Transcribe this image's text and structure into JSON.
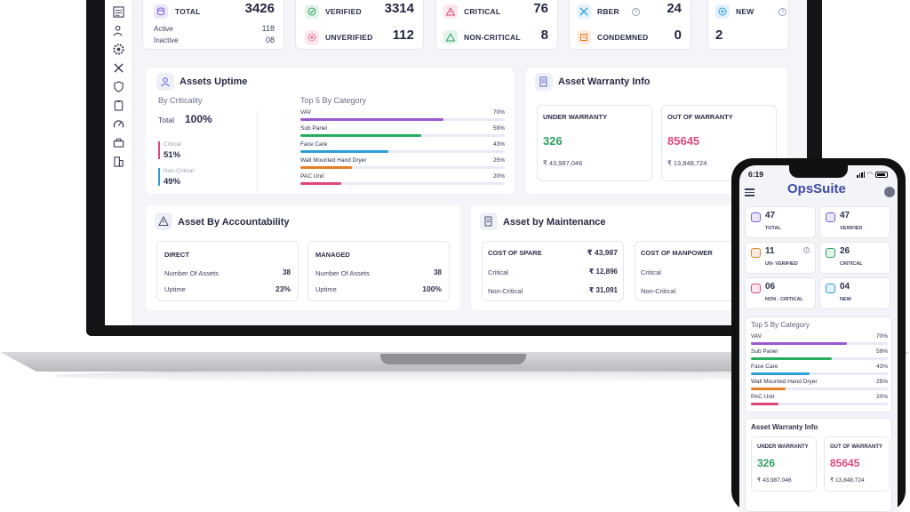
{
  "laptop": {
    "sidebar": {
      "icons": [
        "stacked-report-icon",
        "user-tools-icon",
        "gear-circle-icon",
        "wrench-cross-icon",
        "shield-icon",
        "clipboard-icon",
        "dashboard-gauge-icon",
        "toolbox-icon",
        "building-icon"
      ]
    },
    "stats": {
      "total": {
        "label": "TOTAL",
        "value": "3426",
        "active_label": "Active",
        "active_value": "118",
        "inactive_label": "Inactive",
        "inactive_value": "08"
      },
      "verified": {
        "label": "VERIFIED",
        "value": "3314"
      },
      "unverified": {
        "label": "UNVERIFIED",
        "value": "112"
      },
      "critical": {
        "label": "CRITICAL",
        "value": "76"
      },
      "non_critical": {
        "label": "NON-CRITICAL",
        "value": "8"
      },
      "rber": {
        "label": "RBER",
        "value": "24"
      },
      "condemned": {
        "label": "CONDEMNED",
        "value": "0"
      },
      "new": {
        "label": "NEW",
        "value": "2"
      }
    },
    "uptime": {
      "title": "Assets Uptime",
      "by_criticality": "By Criticality",
      "total_label": "Total",
      "total_value": "100%",
      "critical_label": "Critical",
      "critical_value": "51%",
      "noncritical_label": "Non-Critical",
      "noncritical_value": "49%",
      "top5_title": "Top 5 By Category",
      "categories": [
        {
          "name": "VAV",
          "pct": "70%",
          "fraction": 0.7,
          "color": "#9b59d0"
        },
        {
          "name": "Sub Panel",
          "pct": "59%",
          "fraction": 0.59,
          "color": "#27ae60"
        },
        {
          "name": "Face Care",
          "pct": "43%",
          "fraction": 0.43,
          "color": "#2e9fd6"
        },
        {
          "name": "Wall Mounted Hand Dryer",
          "pct": "25%",
          "fraction": 0.25,
          "color": "#e67e22"
        },
        {
          "name": "PAC Unit",
          "pct": "20%",
          "fraction": 0.2,
          "color": "#e0457b"
        }
      ]
    },
    "warranty": {
      "title": "Asset Warranty Info",
      "under_label": "UNDER WARRANTY",
      "under_value": "326",
      "under_amount": "₹ 43,987,046",
      "out_label": "OUT OF WARRANTY",
      "out_value": "85645",
      "out_amount": "₹ 13,848,724"
    },
    "accountability": {
      "title": "Asset By Accountability",
      "direct": {
        "label": "DIRECT",
        "assets_label": "Number Of Assets",
        "assets_value": "38",
        "uptime_label": "Uptime",
        "uptime_value": "23%"
      },
      "managed": {
        "label": "MANAGED",
        "assets_label": "Number Of Assets",
        "assets_value": "38",
        "uptime_label": "Uptime",
        "uptime_value": "100%"
      }
    },
    "maintenance": {
      "title": "Asset by Maintenance",
      "spare": {
        "label": "COST OF SPARE",
        "total": "₹ 43,987",
        "critical_label": "Critical",
        "critical_value": "₹ 12,896",
        "noncritical_label": "Non-Critical",
        "noncritical_value": "₹ 31,091"
      },
      "manpower": {
        "label": "COST OF MANPOWER",
        "critical_label": "Critical",
        "noncritical_label": "Non-Critical"
      }
    }
  },
  "phone": {
    "time": "6:19",
    "brand": "OpsSuite",
    "tiles": [
      {
        "value": "47",
        "label": "TOTAL"
      },
      {
        "value": "47",
        "label": "VERIFIED"
      },
      {
        "value": "11",
        "label": "UN- VERIFIED"
      },
      {
        "value": "26",
        "label": "CRITICAL"
      },
      {
        "value": "06",
        "label": "NON - CRITICAL"
      },
      {
        "value": "04",
        "label": "NEW"
      }
    ],
    "top5_title": "Top 5 By Category",
    "categories": [
      {
        "name": "VAV",
        "pct": "70%",
        "fraction": 0.7,
        "color": "#9b59d0"
      },
      {
        "name": "Sub Panel",
        "pct": "59%",
        "fraction": 0.59,
        "color": "#27ae60"
      },
      {
        "name": "Face Care",
        "pct": "43%",
        "fraction": 0.43,
        "color": "#2e9fd6"
      },
      {
        "name": "Wall Mounted Hand Dryer",
        "pct": "25%",
        "fraction": 0.25,
        "color": "#e67e22"
      },
      {
        "name": "PAC Unit",
        "pct": "20%",
        "fraction": 0.2,
        "color": "#e0457b"
      }
    ],
    "warranty": {
      "title": "Asset Warranty Info",
      "under_label": "UNDER WARRANTY",
      "under_value": "326",
      "under_amount": "₹ 43,987,046",
      "out_label": "OUT OF WARRANTY",
      "out_value": "85645",
      "out_amount": "₹ 13,848,724"
    }
  },
  "colors": {
    "green": "#2f9e63",
    "pink": "#d94a7a",
    "accent": "#5a62d6",
    "critical_bar": "#e0457b",
    "noncritical_bar": "#2e9fd6"
  }
}
